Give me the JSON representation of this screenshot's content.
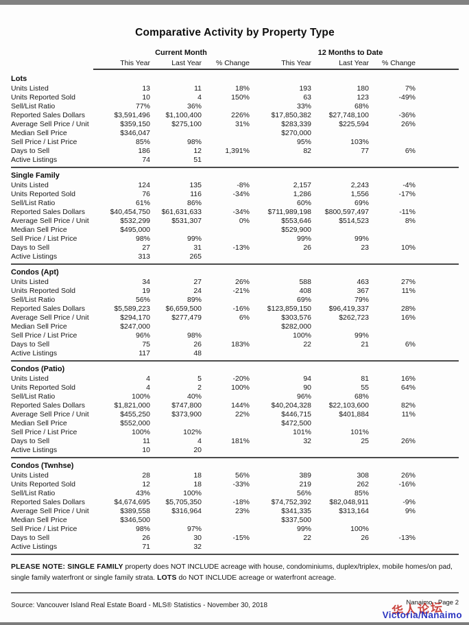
{
  "page": {
    "title": "Comparative Activity by Property Type"
  },
  "table": {
    "group_headers": [
      "Current Month",
      "12 Months to Date"
    ],
    "col_headers": [
      "This Year",
      "Last Year",
      "% Change",
      "This Year",
      "Last Year",
      "% Change"
    ],
    "sections": [
      {
        "name": "Lots",
        "rows": [
          [
            "Units Listed",
            "13",
            "11",
            "18%",
            "193",
            "180",
            "7%"
          ],
          [
            "Units Reported Sold",
            "10",
            "4",
            "150%",
            "63",
            "123",
            "-49%"
          ],
          [
            "Sell/List Ratio",
            "77%",
            "36%",
            "",
            "33%",
            "68%",
            ""
          ],
          [
            "Reported Sales Dollars",
            "$3,591,496",
            "$1,100,400",
            "226%",
            "$17,850,382",
            "$27,748,100",
            "-36%"
          ],
          [
            "Average Sell Price / Unit",
            "$359,150",
            "$275,100",
            "31%",
            "$283,339",
            "$225,594",
            "26%"
          ],
          [
            "Median Sell Price",
            "$346,047",
            "",
            "",
            "$270,000",
            "",
            ""
          ],
          [
            "Sell Price / List Price",
            "85%",
            "98%",
            "",
            "95%",
            "103%",
            ""
          ],
          [
            "Days to Sell",
            "186",
            "12",
            "1,391%",
            "82",
            "77",
            "6%"
          ],
          [
            "Active Listings",
            "74",
            "51",
            "",
            "",
            "",
            ""
          ]
        ]
      },
      {
        "name": "Single Family",
        "rows": [
          [
            "Units Listed",
            "124",
            "135",
            "-8%",
            "2,157",
            "2,243",
            "-4%"
          ],
          [
            "Units Reported Sold",
            "76",
            "116",
            "-34%",
            "1,286",
            "1,556",
            "-17%"
          ],
          [
            "Sell/List Ratio",
            "61%",
            "86%",
            "",
            "60%",
            "69%",
            ""
          ],
          [
            "Reported Sales Dollars",
            "$40,454,750",
            "$61,631,633",
            "-34%",
            "$711,989,198",
            "$800,597,497",
            "-11%"
          ],
          [
            "Average Sell Price / Unit",
            "$532,299",
            "$531,307",
            "0%",
            "$553,646",
            "$514,523",
            "8%"
          ],
          [
            "Median Sell Price",
            "$495,000",
            "",
            "",
            "$529,900",
            "",
            ""
          ],
          [
            "Sell Price / List Price",
            "98%",
            "99%",
            "",
            "99%",
            "99%",
            ""
          ],
          [
            "Days to Sell",
            "27",
            "31",
            "-13%",
            "26",
            "23",
            "10%"
          ],
          [
            "Active Listings",
            "313",
            "265",
            "",
            "",
            "",
            ""
          ]
        ]
      },
      {
        "name": "Condos (Apt)",
        "rows": [
          [
            "Units Listed",
            "34",
            "27",
            "26%",
            "588",
            "463",
            "27%"
          ],
          [
            "Units Reported Sold",
            "19",
            "24",
            "-21%",
            "408",
            "367",
            "11%"
          ],
          [
            "Sell/List Ratio",
            "56%",
            "89%",
            "",
            "69%",
            "79%",
            ""
          ],
          [
            "Reported Sales Dollars",
            "$5,589,223",
            "$6,659,500",
            "-16%",
            "$123,859,150",
            "$96,419,337",
            "28%"
          ],
          [
            "Average Sell Price / Unit",
            "$294,170",
            "$277,479",
            "6%",
            "$303,576",
            "$262,723",
            "16%"
          ],
          [
            "Median Sell Price",
            "$247,000",
            "",
            "",
            "$282,000",
            "",
            ""
          ],
          [
            "Sell Price / List Price",
            "96%",
            "98%",
            "",
            "100%",
            "99%",
            ""
          ],
          [
            "Days to Sell",
            "75",
            "26",
            "183%",
            "22",
            "21",
            "6%"
          ],
          [
            "Active Listings",
            "117",
            "48",
            "",
            "",
            "",
            ""
          ]
        ]
      },
      {
        "name": "Condos (Patio)",
        "rows": [
          [
            "Units Listed",
            "4",
            "5",
            "-20%",
            "94",
            "81",
            "16%"
          ],
          [
            "Units Reported Sold",
            "4",
            "2",
            "100%",
            "90",
            "55",
            "64%"
          ],
          [
            "Sell/List Ratio",
            "100%",
            "40%",
            "",
            "96%",
            "68%",
            ""
          ],
          [
            "Reported Sales Dollars",
            "$1,821,000",
            "$747,800",
            "144%",
            "$40,204,328",
            "$22,103,600",
            "82%"
          ],
          [
            "Average Sell Price / Unit",
            "$455,250",
            "$373,900",
            "22%",
            "$446,715",
            "$401,884",
            "11%"
          ],
          [
            "Median Sell Price",
            "$552,000",
            "",
            "",
            "$472,500",
            "",
            ""
          ],
          [
            "Sell Price / List Price",
            "100%",
            "102%",
            "",
            "101%",
            "101%",
            ""
          ],
          [
            "Days to Sell",
            "11",
            "4",
            "181%",
            "32",
            "25",
            "26%"
          ],
          [
            "Active Listings",
            "10",
            "20",
            "",
            "",
            "",
            ""
          ]
        ]
      },
      {
        "name": "Condos (Twnhse)",
        "rows": [
          [
            "Units Listed",
            "28",
            "18",
            "56%",
            "389",
            "308",
            "26%"
          ],
          [
            "Units Reported Sold",
            "12",
            "18",
            "-33%",
            "219",
            "262",
            "-16%"
          ],
          [
            "Sell/List Ratio",
            "43%",
            "100%",
            "",
            "56%",
            "85%",
            ""
          ],
          [
            "Reported Sales Dollars",
            "$4,674,695",
            "$5,705,350",
            "-18%",
            "$74,752,392",
            "$82,048,911",
            "-9%"
          ],
          [
            "Average Sell Price / Unit",
            "$389,558",
            "$316,964",
            "23%",
            "$341,335",
            "$313,164",
            "9%"
          ],
          [
            "Median Sell Price",
            "$346,500",
            "",
            "",
            "$337,500",
            "",
            ""
          ],
          [
            "Sell Price / List Price",
            "98%",
            "97%",
            "",
            "99%",
            "100%",
            ""
          ],
          [
            "Days to Sell",
            "26",
            "30",
            "-15%",
            "22",
            "26",
            "-13%"
          ],
          [
            "Active Listings",
            "71",
            "32",
            "",
            "",
            "",
            ""
          ]
        ]
      }
    ]
  },
  "footnote": {
    "bold1": "PLEASE NOTE: SINGLE FAMILY",
    "text1": " property does NOT INCLUDE acreage with house, condominiums, duplex/triplex, mobile homes/on pad, single family waterfront or single family strata. ",
    "bold2": "LOTS",
    "text2": " do NOT INCLUDE acreage or waterfront acreage."
  },
  "footer": {
    "source": "Source: Vancouver Island Real Estate Board - MLS® Statistics - November 30, 2018",
    "page_label": "Nanaimo - Page 2",
    "watermark_red": "华人论坛",
    "watermark_blue": "Victoria/Nanaimo"
  },
  "colors": {
    "watermark_red": "#c42b24",
    "watermark_blue": "#2b35c0"
  }
}
